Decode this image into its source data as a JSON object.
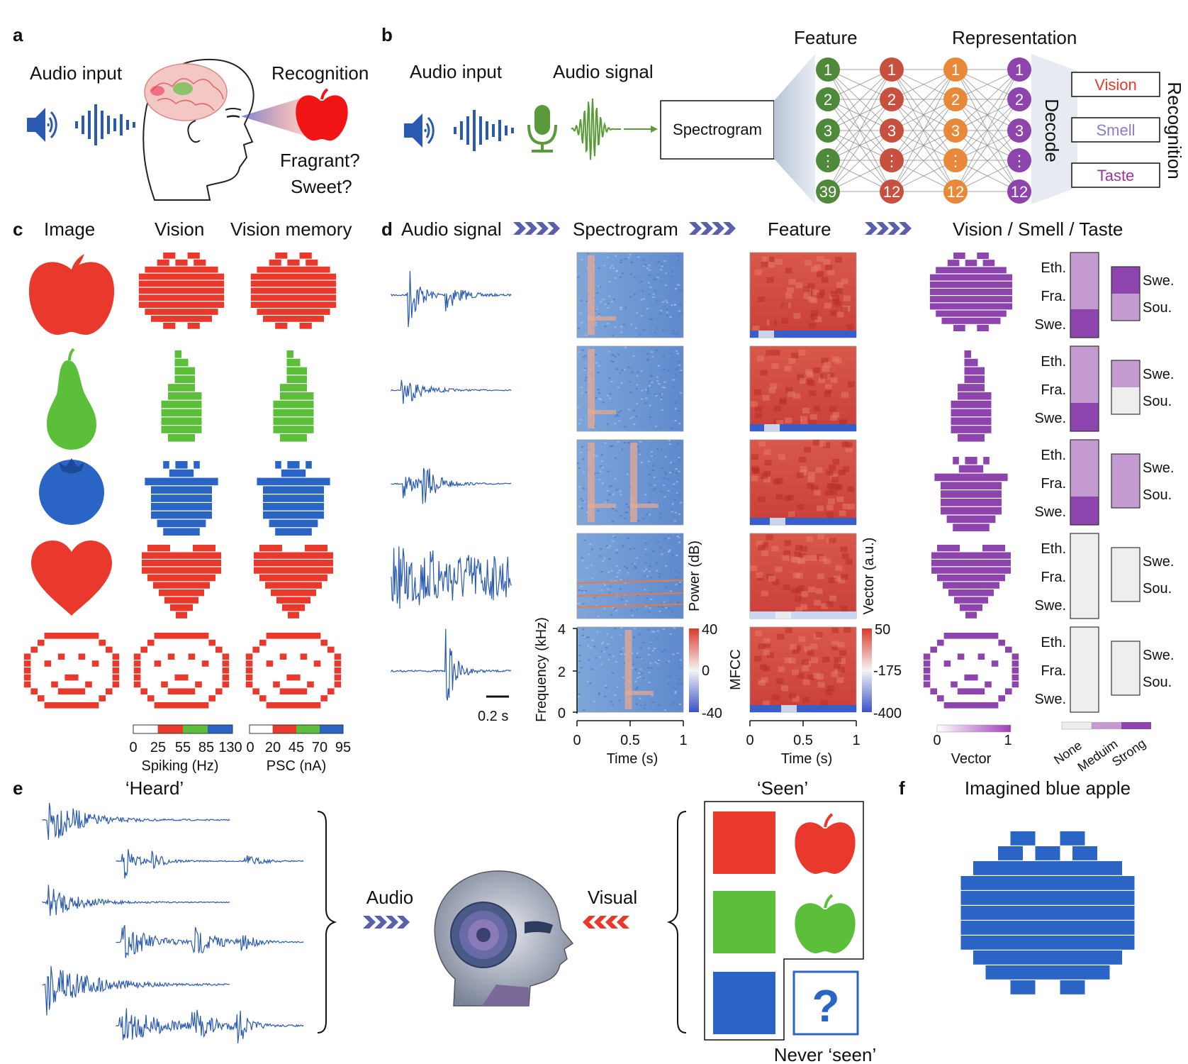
{
  "panels": {
    "a": "a",
    "b": "b",
    "c": "c",
    "d": "d",
    "e": "e",
    "f": "f"
  },
  "colors": {
    "red": "#e8392c",
    "green": "#5bbf3a",
    "blue": "#2a64c4",
    "purple": "#8e44ad",
    "light_purple": "#c49bd0",
    "gray": "#eeeeee",
    "wave": "#2a5ab0",
    "mic": "#5a9a3a",
    "node_green": "#4e8a3a",
    "node_red": "#c8503f",
    "node_orange": "#e8893a",
    "node_purple": "#8e44ad"
  },
  "a": {
    "audio_input": "Audio input",
    "recognition": "Recognition",
    "fragrant": "Fragrant?",
    "sweet": "Sweet?"
  },
  "b": {
    "audio_input": "Audio input",
    "audio_signal": "Audio signal",
    "spectrogram": "Spectrogram",
    "feature": "Feature",
    "representation": "Representation",
    "decode": "Decode",
    "recognition": "Recognition",
    "outputs": [
      "Vision",
      "Smell",
      "Taste"
    ],
    "nodes": [
      "1",
      "2",
      "3",
      "⋮",
      "39",
      "12"
    ]
  },
  "c": {
    "headers": [
      "Image",
      "Vision",
      "Vision memory"
    ],
    "spiking": {
      "ticks": [
        "0",
        "25",
        "55",
        "85",
        "130"
      ],
      "label": "Spiking (Hz)"
    },
    "psc": {
      "ticks": [
        "0",
        "20",
        "45",
        "70",
        "95"
      ],
      "label": "PSC (nA)"
    }
  },
  "d": {
    "headers": [
      "Audio signal",
      "Spectrogram",
      "Feature",
      "Vision / Smell / Taste"
    ],
    "scale_bar": "0.2 s",
    "spec_axes": {
      "y_label": "Frequency (kHz)",
      "y_ticks": [
        "4",
        "2",
        "0"
      ],
      "x_label": "Time (s)",
      "x_ticks": [
        "0",
        "0.5",
        "1"
      ],
      "cbar_label": "Power (dB)",
      "cbar_ticks": [
        "40",
        "0",
        "-40"
      ]
    },
    "feat_axes": {
      "y_label": "MFCC",
      "x_label": "Time (s)",
      "x_ticks": [
        "0",
        "0.5",
        "1"
      ],
      "cbar_label": "Vector (a.u.)",
      "cbar_ticks": [
        "50",
        "-175",
        "-400"
      ]
    },
    "smell_labels": [
      "Eth.",
      "Fra.",
      "Swe."
    ],
    "taste_labels": [
      "Swe.",
      "Sou."
    ],
    "vector_scale": {
      "ticks": [
        "0",
        "1"
      ],
      "label": "Vector"
    },
    "strength_scale": [
      "None",
      "Meduim",
      "Strong"
    ],
    "rows": [
      {
        "smell": [
          "medium",
          "medium",
          "strong"
        ],
        "taste": [
          "strong",
          "medium"
        ]
      },
      {
        "smell": [
          "medium",
          "medium",
          "strong"
        ],
        "taste": [
          "medium",
          "none"
        ]
      },
      {
        "smell": [
          "medium",
          "medium",
          "strong"
        ],
        "taste": [
          "medium",
          "medium"
        ]
      },
      {
        "smell": [
          "none",
          "none",
          "none"
        ],
        "taste": [
          "none",
          "none"
        ]
      },
      {
        "smell": [
          "none",
          "none",
          "none"
        ],
        "taste": [
          "none",
          "none"
        ]
      }
    ]
  },
  "e": {
    "heard": "‘Heard’",
    "seen": "‘Seen’",
    "audio": "Audio",
    "visual": "Visual",
    "never_seen": "Never ‘seen’",
    "question": "?"
  },
  "f": {
    "title": "Imagined blue apple"
  }
}
